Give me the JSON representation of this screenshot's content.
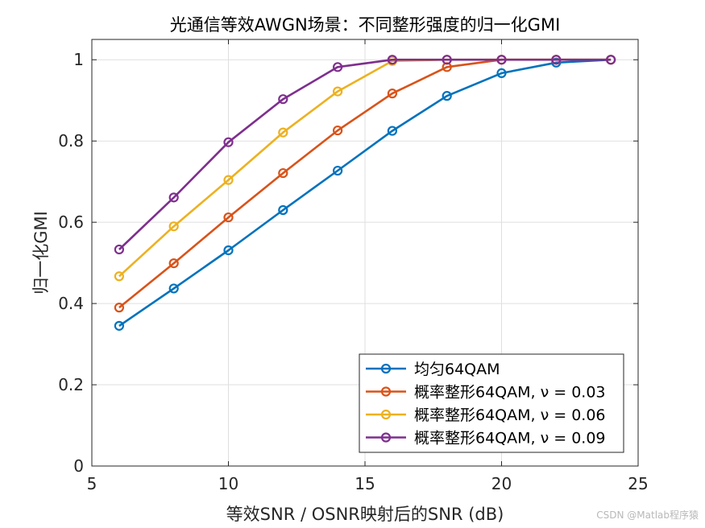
{
  "chart_data": {
    "type": "line",
    "title": "光通信等效AWGN场景：不同整形强度的归一化GMI",
    "xlabel": "等效SNR / OSNR映射后的SNR (dB)",
    "ylabel": "归一化GMI",
    "xlim": [
      5,
      25
    ],
    "ylim": [
      0,
      1.05
    ],
    "x_ticks": [
      5,
      10,
      15,
      20,
      25
    ],
    "y_ticks": [
      0,
      0.2,
      0.4,
      0.6,
      0.8,
      1
    ],
    "x_tick_labels": [
      "5",
      "10",
      "15",
      "20",
      "25"
    ],
    "y_tick_labels": [
      "0",
      "0.2",
      "0.4",
      "0.6",
      "0.8",
      "1"
    ],
    "grid": true,
    "legend_position": "bottom-right",
    "x": [
      6,
      8,
      10,
      12,
      14,
      16,
      18,
      20,
      22,
      24
    ],
    "series": [
      {
        "name": "均匀64QAM",
        "color": "#0072BD",
        "values": [
          0.345,
          0.437,
          0.531,
          0.63,
          0.727,
          0.825,
          0.911,
          0.967,
          0.993,
          1.0
        ]
      },
      {
        "name": "概率整形64QAM, ν = 0.03",
        "color": "#D95319",
        "values": [
          0.39,
          0.499,
          0.612,
          0.721,
          0.826,
          0.917,
          0.982,
          1.0,
          1.0,
          1.0
        ]
      },
      {
        "name": "概率整形64QAM, ν = 0.06",
        "color": "#EDB120",
        "values": [
          0.467,
          0.59,
          0.704,
          0.821,
          0.922,
          0.997,
          1.0,
          1.0,
          1.0,
          1.0
        ]
      },
      {
        "name": "概率整形64QAM, ν = 0.09",
        "color": "#7E2F8E",
        "values": [
          0.533,
          0.661,
          0.797,
          0.903,
          0.982,
          1.0,
          1.0,
          1.0,
          1.0,
          1.0
        ]
      }
    ]
  },
  "watermark": "CSDN @Matlab程序猿"
}
